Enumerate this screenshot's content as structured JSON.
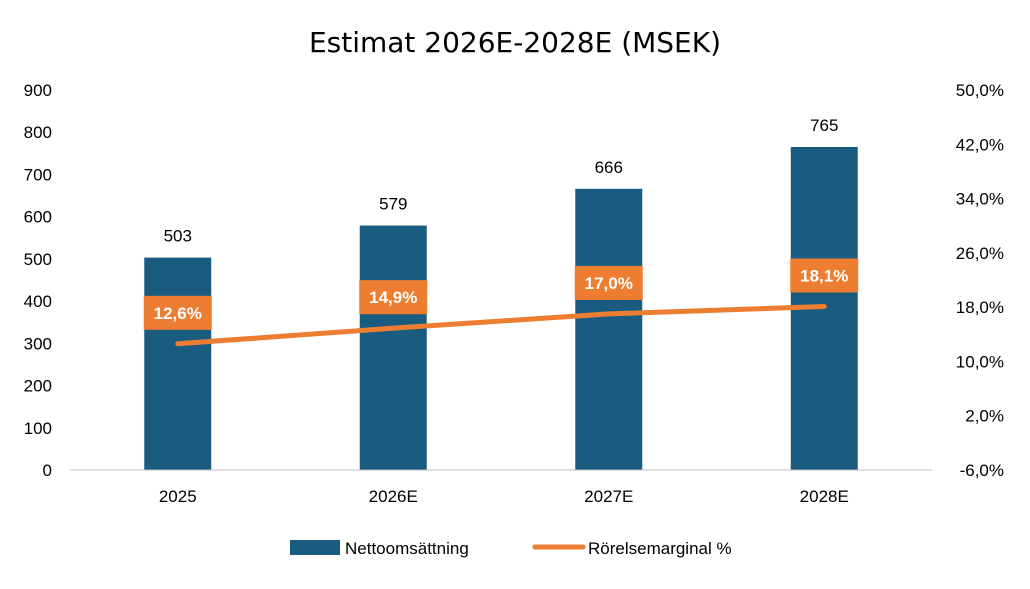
{
  "chart_data": {
    "type": "bar",
    "title": "Estimat 2026E-2028E (MSEK)",
    "categories": [
      "2025",
      "2026E",
      "2027E",
      "2028E"
    ],
    "series": [
      {
        "name": "Nettoomsättning",
        "type": "bar",
        "axis": "left",
        "values": [
          503,
          579,
          666,
          765
        ],
        "labels": [
          "503",
          "579",
          "666",
          "765"
        ],
        "color": "#1a5c80"
      },
      {
        "name": "Rörelsemarginal %",
        "type": "line",
        "axis": "right",
        "values": [
          12.6,
          14.9,
          17.0,
          18.1
        ],
        "labels": [
          "12,6%",
          "14,9%",
          "17,0%",
          "18,1%"
        ],
        "color": "#ed7d31"
      }
    ],
    "ylim_left": [
      0,
      900
    ],
    "yticks_left": [
      "0",
      "100",
      "200",
      "300",
      "400",
      "500",
      "600",
      "700",
      "800",
      "900"
    ],
    "ylim_right": [
      -6,
      50
    ],
    "yticks_right": [
      "-6,0%",
      "2,0%",
      "10,0%",
      "18,0%",
      "26,0%",
      "34,0%",
      "42,0%",
      "50,0%"
    ],
    "grid": false,
    "legend_position": "bottom"
  }
}
